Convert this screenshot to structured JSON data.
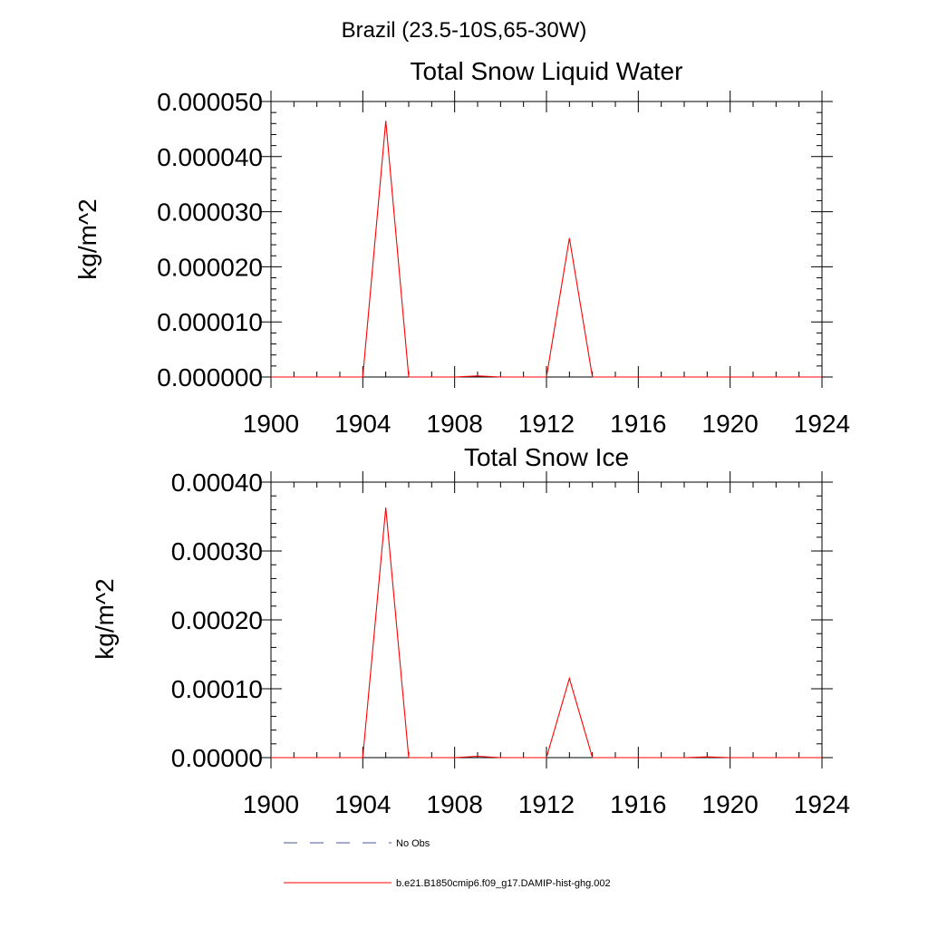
{
  "page_title": "Brazil (23.5-10S,65-30W)",
  "colors": {
    "model": "#ff0000",
    "obs": "#4a5a9a",
    "axis": "#000000"
  },
  "chart_data": [
    {
      "type": "line",
      "title": "Total Snow Liquid Water",
      "ylabel": "kg/m^2",
      "xlim": [
        1900,
        1924
      ],
      "ylim": [
        0,
        5e-05
      ],
      "x_ticks": [
        1900,
        1904,
        1908,
        1912,
        1916,
        1920,
        1924
      ],
      "y_ticks": [
        "0.000000",
        "0.000010",
        "0.000020",
        "0.000030",
        "0.000040",
        "0.000050"
      ],
      "grid": false,
      "series": [
        {
          "name": "b.e21.B1850cmip6.f09_g17.DAMIP-hist-ghg.002",
          "color": "#ff0000",
          "x": [
            1900,
            1901,
            1902,
            1903,
            1904,
            1905,
            1906,
            1907,
            1908,
            1909,
            1910,
            1911,
            1912,
            1913,
            1914,
            1915,
            1916,
            1917,
            1918,
            1919,
            1920,
            1921,
            1922,
            1923,
            1924
          ],
          "values": [
            0,
            0,
            0,
            0,
            0,
            4.65e-05,
            0,
            0,
            0,
            2e-07,
            0,
            0,
            0,
            2.52e-05,
            0,
            0,
            0,
            0,
            0,
            0,
            0,
            0,
            0,
            0,
            0
          ]
        }
      ]
    },
    {
      "type": "line",
      "title": "Total Snow Ice",
      "ylabel": "kg/m^2",
      "xlim": [
        1900,
        1924
      ],
      "ylim": [
        0,
        0.0004
      ],
      "x_ticks": [
        1900,
        1904,
        1908,
        1912,
        1916,
        1920,
        1924
      ],
      "y_ticks": [
        "0.00000",
        "0.00010",
        "0.00020",
        "0.00030",
        "0.00040"
      ],
      "grid": false,
      "series": [
        {
          "name": "b.e21.B1850cmip6.f09_g17.DAMIP-hist-ghg.002",
          "color": "#ff0000",
          "x": [
            1900,
            1901,
            1902,
            1903,
            1904,
            1905,
            1906,
            1907,
            1908,
            1909,
            1910,
            1911,
            1912,
            1913,
            1914,
            1915,
            1916,
            1917,
            1918,
            1919,
            1920,
            1921,
            1922,
            1923,
            1924
          ],
          "values": [
            0,
            0,
            0,
            0,
            0,
            0.000363,
            0,
            0,
            0,
            2e-06,
            0,
            0,
            0,
            0.000115,
            0,
            0,
            0,
            0,
            0,
            1e-06,
            0,
            0,
            0,
            0,
            0
          ]
        }
      ]
    }
  ],
  "legend": {
    "placement": "bottom",
    "entries": [
      {
        "label": "No Obs",
        "style": "dashed",
        "color": "#4a5a9a"
      },
      {
        "label": "b.e21.B1850cmip6.f09_g17.DAMIP-hist-ghg.002",
        "style": "solid",
        "color": "#ff0000"
      }
    ]
  }
}
